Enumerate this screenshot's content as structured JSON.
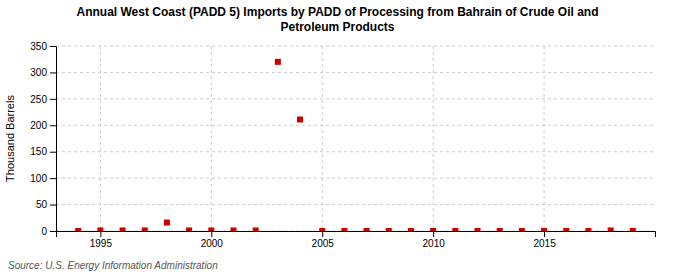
{
  "chart_data": {
    "type": "scatter",
    "title": "Annual West Coast (PADD 5) Imports by PADD of Processing from Bahrain of Crude Oil and\nPetroleum Products",
    "ylabel": "Thousand Barrels",
    "source": "Source: U.S. Energy Information Administration",
    "x": [
      1994,
      1995,
      1996,
      1997,
      1998,
      1999,
      2000,
      2001,
      2002,
      2003,
      2004,
      2005,
      2006,
      2007,
      2008,
      2009,
      2010,
      2011,
      2012,
      2013,
      2014,
      2015,
      2016,
      2017,
      2018,
      2019
    ],
    "values": [
      0,
      1,
      1,
      1,
      16,
      1,
      1,
      1,
      1,
      320,
      211,
      0,
      0,
      0,
      0,
      0,
      0,
      0,
      0,
      0,
      0,
      0,
      0,
      0,
      1,
      0
    ],
    "color": "#cc0000",
    "marker": "square",
    "xlim": [
      1993,
      2020
    ],
    "xticks": [
      1995,
      2000,
      2005,
      2010,
      2015
    ],
    "ylim": [
      0,
      350
    ],
    "yticks": [
      0,
      50,
      100,
      150,
      200,
      250,
      300,
      350
    ],
    "grid": true
  }
}
